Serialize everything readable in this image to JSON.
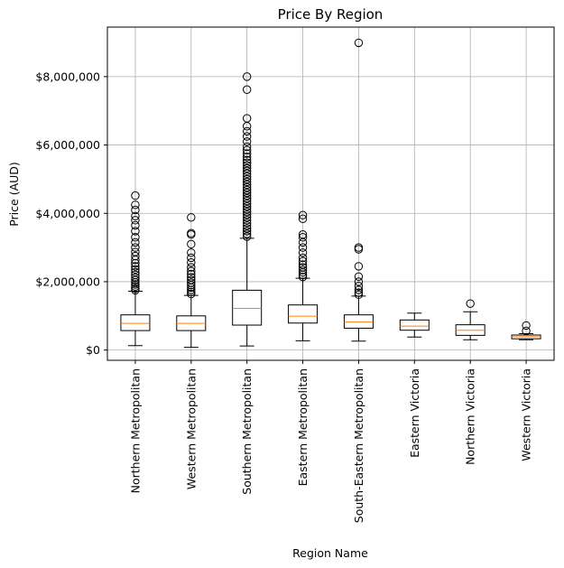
{
  "chart_data": {
    "type": "box",
    "title": "Price By Region",
    "xlabel": "Region Name",
    "ylabel": "Price (AUD)",
    "ylim": [
      -300000,
      9450000
    ],
    "yticks": [
      {
        "value": 0,
        "label": "$0"
      },
      {
        "value": 2000000,
        "label": "$2,000,000"
      },
      {
        "value": 4000000,
        "label": "$4,000,000"
      },
      {
        "value": 6000000,
        "label": "$6,000,000"
      },
      {
        "value": 8000000,
        "label": "$8,000,000"
      }
    ],
    "grid": true,
    "colors": {
      "box": "#000000",
      "median": "#ff7f0e",
      "grid": "#b0b0b0"
    },
    "categories": [
      "Northern Metropolitan",
      "Western Metropolitan",
      "Southern Metropolitan",
      "Eastern Metropolitan",
      "South-Eastern Metropolitan",
      "Eastern Victoria",
      "Northern Victoria",
      "Western Victoria"
    ],
    "boxes": [
      {
        "whislo": 130000,
        "q1": 570000,
        "med": 780000,
        "q3": 1030000,
        "whishi": 1720000,
        "fliers": [
          1750000,
          1800000,
          1860000,
          1920000,
          1980000,
          2050000,
          2120000,
          2200000,
          2280000,
          2360000,
          2450000,
          2540000,
          2640000,
          2750000,
          2870000,
          3000000,
          3150000,
          3300000,
          3480000,
          3650000,
          3800000,
          3920000,
          4100000,
          4250000,
          4520000
        ]
      },
      {
        "whislo": 80000,
        "q1": 570000,
        "med": 780000,
        "q3": 1000000,
        "whishi": 1600000,
        "fliers": [
          1640000,
          1700000,
          1760000,
          1830000,
          1900000,
          1970000,
          2050000,
          2130000,
          2220000,
          2310000,
          2420000,
          2560000,
          2700000,
          2850000,
          3100000,
          3380000,
          3420000,
          3880000
        ]
      },
      {
        "whislo": 120000,
        "q1": 730000,
        "med": 1220000,
        "q3": 1750000,
        "whishi": 3270000,
        "fliers": [
          3320000,
          3400000,
          3480000,
          3560000,
          3640000,
          3720000,
          3800000,
          3880000,
          3960000,
          4040000,
          4120000,
          4200000,
          4280000,
          4360000,
          4440000,
          4520000,
          4600000,
          4680000,
          4760000,
          4840000,
          4920000,
          5000000,
          5080000,
          5160000,
          5240000,
          5320000,
          5400000,
          5480000,
          5560000,
          5650000,
          5750000,
          5850000,
          5950000,
          6100000,
          6250000,
          6400000,
          6550000,
          6780000,
          7620000,
          8000000
        ]
      },
      {
        "whislo": 270000,
        "q1": 790000,
        "med": 990000,
        "q3": 1320000,
        "whishi": 2100000,
        "fliers": [
          2140000,
          2200000,
          2270000,
          2340000,
          2420000,
          2500000,
          2600000,
          2700000,
          2850000,
          3000000,
          3150000,
          3300000,
          3380000,
          3840000,
          3950000
        ]
      },
      {
        "whislo": 260000,
        "q1": 640000,
        "med": 820000,
        "q3": 1030000,
        "whishi": 1580000,
        "fliers": [
          1620000,
          1680000,
          1760000,
          1870000,
          2000000,
          2150000,
          2450000,
          2950000,
          3000000,
          8990000
        ]
      },
      {
        "whislo": 380000,
        "q1": 580000,
        "med": 700000,
        "q3": 880000,
        "whishi": 1080000,
        "fliers": []
      },
      {
        "whislo": 300000,
        "q1": 430000,
        "med": 580000,
        "q3": 740000,
        "whishi": 1120000,
        "fliers": [
          1360000
        ]
      },
      {
        "whislo": 300000,
        "q1": 330000,
        "med": 390000,
        "q3": 440000,
        "whishi": 480000,
        "fliers": [
          560000,
          720000
        ]
      }
    ]
  }
}
